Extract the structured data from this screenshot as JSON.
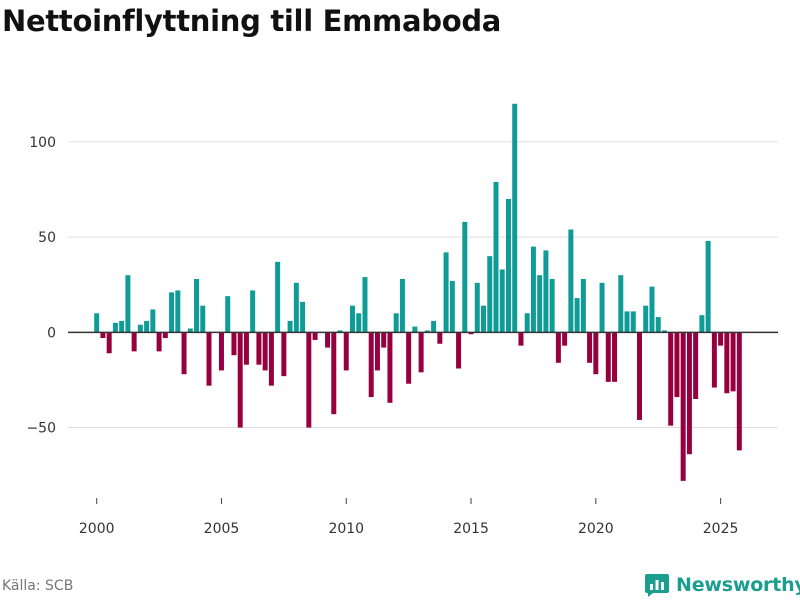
{
  "title": "Nettoinflyttning till Emmaboda",
  "source": "Källa: SCB",
  "brand": {
    "name": "Newsworthy",
    "icon": "newsworthy-logo-icon"
  },
  "colors": {
    "positive": "#0f9b96",
    "negative": "#97003e",
    "brand": "#1a9e8f",
    "grid": "#e0e0e0",
    "zero_line": "#333333"
  },
  "chart_data": {
    "type": "bar",
    "title": "Nettoinflyttning till Emmaboda",
    "xlabel": "",
    "ylabel": "",
    "xlim": [
      1998.85,
      2027.3
    ],
    "ylim": [
      -87,
      122
    ],
    "yticks": [
      -50,
      0,
      50,
      100
    ],
    "xticks": [
      2000,
      2005,
      2010,
      2015,
      2020,
      2025
    ],
    "grid": true,
    "frequency": "quarterly",
    "x_start": 2000.0,
    "x_step": 0.25,
    "values": [
      10,
      -3,
      -11,
      5,
      6,
      30,
      -10,
      4,
      6,
      12,
      -10,
      -3,
      21,
      22,
      -22,
      2,
      28,
      14,
      -28,
      0,
      -20,
      19,
      -12,
      -50,
      -17,
      22,
      -17,
      -20,
      -28,
      37,
      -23,
      6,
      26,
      16,
      -50,
      -4,
      0,
      -8,
      -43,
      1,
      -20,
      14,
      10,
      29,
      -34,
      -20,
      -8,
      -37,
      10,
      28,
      -27,
      3,
      -21,
      1,
      6,
      -6,
      42,
      27,
      -19,
      58,
      -1,
      26,
      14,
      40,
      79,
      33,
      70,
      120,
      -7,
      10,
      45,
      30,
      43,
      28,
      -16,
      -7,
      54,
      18,
      28,
      -16,
      -22,
      26,
      -26,
      -26,
      30,
      11,
      11,
      -46,
      14,
      24,
      8,
      1,
      -49,
      -34,
      -78,
      -64,
      -35,
      9,
      48,
      -29,
      -7,
      -32,
      -31,
      -62
    ]
  }
}
